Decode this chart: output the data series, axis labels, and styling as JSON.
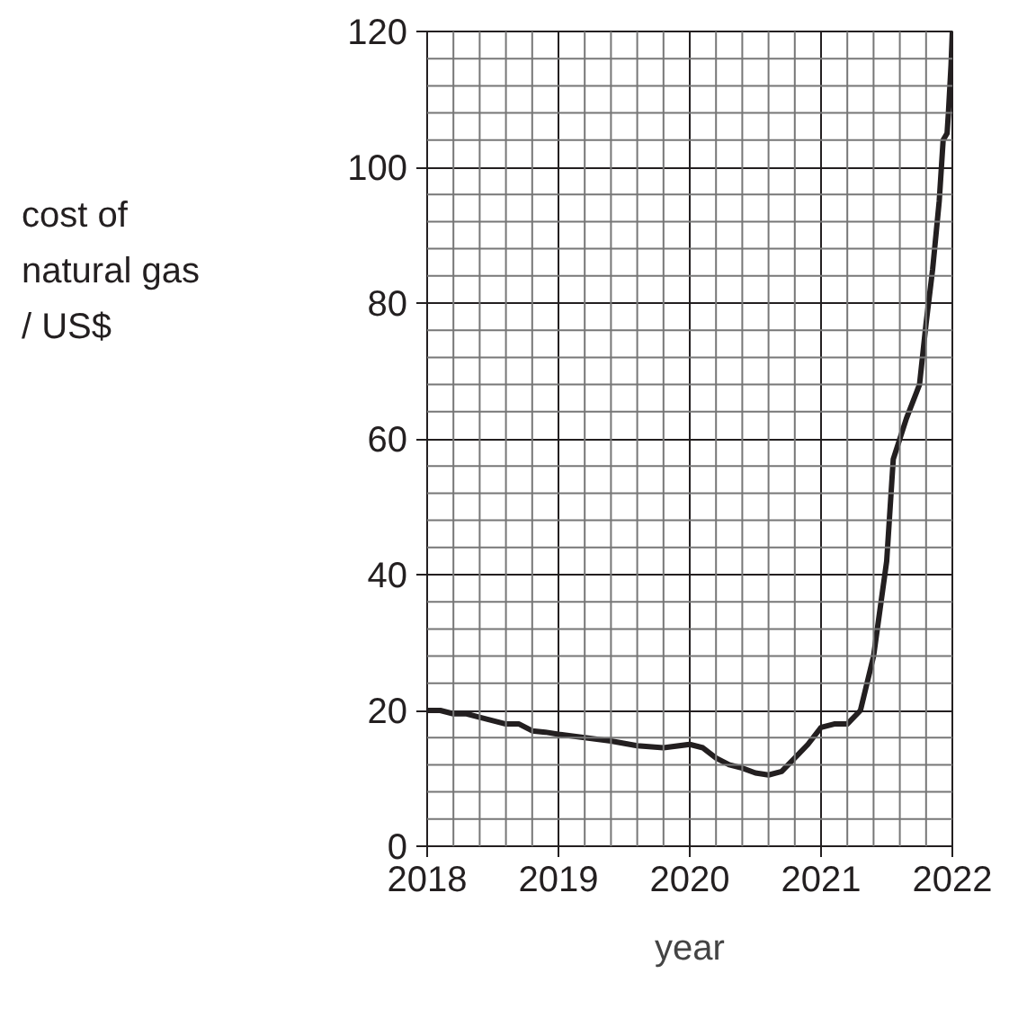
{
  "chart_data": {
    "type": "line",
    "xlabel": "year",
    "ylabel": "cost of natural gas / US$",
    "x": [
      2018.0,
      2018.1,
      2018.2,
      2018.3,
      2018.4,
      2018.5,
      2018.6,
      2018.7,
      2018.8,
      2018.9,
      2019.0,
      2019.2,
      2019.4,
      2019.6,
      2019.8,
      2020.0,
      2020.1,
      2020.2,
      2020.3,
      2020.4,
      2020.5,
      2020.6,
      2020.7,
      2020.8,
      2020.9,
      2021.0,
      2021.1,
      2021.2,
      2021.3,
      2021.4,
      2021.45,
      2021.5,
      2021.55,
      2021.65,
      2021.75,
      2021.8,
      2021.85,
      2021.9,
      2021.93,
      2021.96,
      2021.97,
      2021.99,
      2022.0
    ],
    "values": [
      20,
      20,
      19.5,
      19.5,
      19,
      18.5,
      18,
      18,
      17,
      16.8,
      16.5,
      16,
      15.5,
      14.8,
      14.5,
      15,
      14.5,
      13,
      12,
      11.5,
      10.8,
      10.5,
      11,
      13,
      15,
      17.5,
      18,
      18,
      20,
      28,
      35,
      42,
      57,
      63,
      68,
      77,
      85,
      95,
      104,
      105,
      108,
      115,
      120
    ],
    "color": "#231f20",
    "xlim": [
      2018,
      2022
    ],
    "ylim": [
      0,
      120
    ],
    "xticks": [
      2018,
      2019,
      2020,
      2021,
      2022
    ],
    "yticks": [
      0,
      20,
      40,
      60,
      80,
      100,
      120
    ],
    "grid": true,
    "line_style": "solid",
    "marker": "none"
  }
}
